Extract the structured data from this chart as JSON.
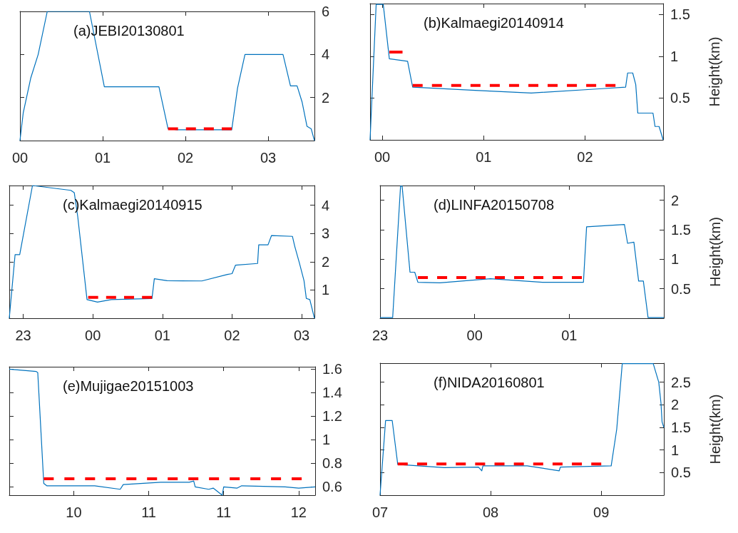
{
  "chart_data": [
    {
      "type": "line",
      "title": "(a)JEBI20130801",
      "xlim": [
        0,
        3.56
      ],
      "xticks": [
        {
          "value": 0,
          "label": "00"
        },
        {
          "value": 1,
          "label": "01"
        },
        {
          "value": 2,
          "label": "02"
        },
        {
          "value": 3,
          "label": "03"
        }
      ],
      "ylim": [
        0,
        6
      ],
      "yticks": [
        2,
        4,
        6
      ],
      "marker": "none",
      "series": [
        {
          "color": "#0072bd",
          "line_style": "solid",
          "x": [
            0,
            0.04,
            0.13,
            0.22,
            0.33,
            0.84,
            1.02,
            1.68,
            1.79,
            1.9,
            2.56,
            2.63,
            2.72,
            3.18,
            3.27,
            3.35,
            3.41,
            3.47,
            3.52,
            3.56
          ],
          "values": [
            0,
            1.3,
            2.9,
            4.0,
            6,
            6,
            2.5,
            2.5,
            0.55,
            0.5,
            0.5,
            2.43,
            4.0,
            4.0,
            2.54,
            2.54,
            1.8,
            0.66,
            0.55,
            0
          ]
        },
        {
          "color": "#ff0000",
          "line_style": "dashed",
          "x": [
            1.79,
            2.56
          ],
          "values": [
            0.55,
            0.55
          ]
        }
      ]
    },
    {
      "type": "line",
      "title": "(b)Kalmaegi20140914",
      "ylabel": "Height(km)",
      "xlim": [
        -0.12,
        2.77
      ],
      "xticks": [
        {
          "value": 0,
          "label": "00"
        },
        {
          "value": 1,
          "label": "01"
        },
        {
          "value": 2,
          "label": "02"
        }
      ],
      "ylim": [
        0,
        1.63
      ],
      "yticks": [
        0.5,
        1,
        1.5
      ],
      "marker": "none",
      "series": [
        {
          "color": "#0072bd",
          "line_style": "solid",
          "x": [
            -0.12,
            -0.06,
            0.01,
            0.07,
            0.25,
            0.3,
            0.95,
            1.47,
            2.14,
            2.4,
            2.42,
            2.47,
            2.5,
            2.52,
            2.67,
            2.69,
            2.73,
            2.77
          ],
          "values": [
            0,
            1.62,
            1.62,
            0.97,
            0.94,
            0.63,
            0.59,
            0.56,
            0.61,
            0.63,
            0.8,
            0.8,
            0.66,
            0.32,
            0.32,
            0.16,
            0.16,
            0
          ]
        },
        {
          "color": "#ff0000",
          "line_style": "solid",
          "x": [
            0.07,
            0.2
          ],
          "values": [
            1.05,
            1.05
          ]
        },
        {
          "color": "#ff0000",
          "line_style": "dashed",
          "x": [
            0.3,
            2.3
          ],
          "values": [
            0.65,
            0.65
          ]
        }
      ]
    },
    {
      "type": "line",
      "title": "(c)Kalmaegi20140915",
      "xlim": [
        "2014-09-14T22:48",
        "2014-09-15T03:11"
      ],
      "xticks": [
        {
          "value": "2014-09-14T23:00",
          "label": "23"
        },
        {
          "value": "2014-09-15T00:00",
          "label": "00"
        },
        {
          "value": "2014-09-15T01:00",
          "label": "01"
        },
        {
          "value": "2014-09-15T02:00",
          "label": "02"
        },
        {
          "value": "2014-09-15T03:00",
          "label": "03"
        }
      ],
      "ylim": [
        0,
        4.7
      ],
      "yticks": [
        1,
        2,
        3,
        4
      ],
      "marker": "none",
      "series": [
        {
          "color": "#0072bd",
          "line_style": "solid",
          "x": [
            "2014-09-14T22:48",
            "2014-09-14T22:53",
            "2014-09-14T22:57",
            "2014-09-14T23:08",
            "2014-09-14T23:41",
            "2014-09-14T23:44",
            "2014-09-14T23:47",
            "2014-09-14T23:55",
            "2014-09-15T00:04",
            "2014-09-15T00:16",
            "2014-09-15T00:51",
            "2014-09-15T00:53",
            "2014-09-15T01:04",
            "2014-09-15T01:34",
            "2014-09-15T01:56",
            "2014-09-15T02:00",
            "2014-09-15T02:03",
            "2014-09-15T02:22",
            "2014-09-15T02:23",
            "2014-09-15T02:31",
            "2014-09-15T02:34",
            "2014-09-15T02:52",
            "2014-09-15T02:54",
            "2014-09-15T02:58",
            "2014-09-15T03:02",
            "2014-09-15T03:04",
            "2014-09-15T03:07",
            "2014-09-15T03:11"
          ],
          "values": [
            0,
            2.25,
            2.25,
            4.7,
            4.53,
            4.45,
            3.6,
            0.66,
            0.57,
            0.66,
            0.7,
            1.4,
            1.33,
            1.32,
            1.55,
            1.58,
            1.88,
            1.94,
            2.6,
            2.6,
            2.93,
            2.9,
            2.55,
            1.96,
            1.33,
            0.7,
            0.66,
            0
          ]
        },
        {
          "color": "#ff0000",
          "line_style": "dashed",
          "x": [
            "2014-09-14T23:56",
            "2014-09-15T00:51"
          ],
          "values": [
            0.74,
            0.74
          ]
        }
      ]
    },
    {
      "type": "line",
      "title": "(d)LINFA20150708",
      "ylabel": "Height(km)",
      "xlim": [
        "2015-07-07T23:00",
        "2015-07-08T02:00"
      ],
      "xticks": [
        {
          "value": "2015-07-07T23:00",
          "label": "23"
        },
        {
          "value": "2015-07-08T00:00",
          "label": "00"
        },
        {
          "value": "2015-07-08T01:00",
          "label": "01"
        }
      ],
      "ylim": [
        0,
        2.25
      ],
      "yticks": [
        0.5,
        1,
        1.5,
        2
      ],
      "marker": "none",
      "series": [
        {
          "color": "#0072bd",
          "line_style": "solid",
          "x": [
            "2015-07-07T23:00",
            "2015-07-07T23:08",
            "2015-07-07T23:13",
            "2015-07-07T23:14",
            "2015-07-07T23:19",
            "2015-07-07T23:22",
            "2015-07-07T23:24",
            "2015-07-07T23:38",
            "2015-07-08T00:10",
            "2015-07-08T00:43",
            "2015-07-08T01:09",
            "2015-07-08T01:11",
            "2015-07-08T01:35",
            "2015-07-08T01:37",
            "2015-07-08T01:41",
            "2015-07-08T01:44",
            "2015-07-08T01:47",
            "2015-07-08T01:50",
            "2015-07-08T02:00"
          ],
          "values": [
            0.01,
            0.01,
            2.24,
            2.24,
            0.78,
            0.78,
            0.61,
            0.6,
            0.67,
            0.61,
            0.61,
            1.55,
            1.59,
            1.27,
            1.29,
            0.63,
            0.63,
            0.01,
            0.01
          ]
        },
        {
          "color": "#ff0000",
          "line_style": "dashed",
          "x": [
            "2015-07-07T23:24",
            "2015-07-08T01:08"
          ],
          "values": [
            0.69,
            0.69
          ]
        }
      ]
    },
    {
      "type": "line",
      "title": "(e)Mujigae20151003",
      "xlim": [
        9.57,
        11.61
      ],
      "xticks": [
        {
          "value": 10,
          "label": "10"
        },
        {
          "value": 10.5,
          "label": "11"
        },
        {
          "value": 11,
          "label": "11"
        },
        {
          "value": 11.5,
          "label": "12"
        }
      ],
      "ylim": [
        0.53,
        1.62
      ],
      "yticks": [
        0.6,
        0.8,
        1,
        1.2,
        1.4,
        1.6
      ],
      "marker": "none",
      "series": [
        {
          "color": "#0072bd",
          "line_style": "solid",
          "x": [
            9.57,
            9.75,
            9.76,
            9.78,
            9.8,
            9.82,
            10.14,
            10.31,
            10.33,
            10.58,
            10.77,
            10.8,
            10.81,
            10.9,
            10.93,
            10.99,
            11.0,
            11.09,
            11.12,
            11.41,
            11.5,
            11.61
          ],
          "values": [
            1.6,
            1.58,
            1.57,
            1.1,
            0.63,
            0.61,
            0.61,
            0.58,
            0.62,
            0.64,
            0.64,
            0.65,
            0.6,
            0.58,
            0.59,
            0.53,
            0.6,
            0.59,
            0.61,
            0.6,
            0.59,
            0.6
          ]
        },
        {
          "color": "#ff0000",
          "line_style": "dashed",
          "x": [
            9.8,
            11.52
          ],
          "values": [
            0.67,
            0.67
          ]
        }
      ]
    },
    {
      "type": "line",
      "title": "(f)NIDA20160801",
      "ylabel": "Height(km)",
      "xlim": [
        7,
        9.566
      ],
      "xticks": [
        {
          "value": 7,
          "label": "07"
        },
        {
          "value": 8,
          "label": "08"
        },
        {
          "value": 9,
          "label": "09"
        }
      ],
      "ylim": [
        0,
        2.92
      ],
      "yticks": [
        0.5,
        1,
        1.5,
        2,
        2.5
      ],
      "marker": "none",
      "series": [
        {
          "color": "#0072bd",
          "line_style": "solid",
          "x": [
            7,
            7.05,
            7.11,
            7.16,
            7.58,
            7.89,
            7.92,
            7.93,
            8.33,
            8.62,
            8.63,
            9.09,
            9.14,
            9.19,
            9.47,
            9.52,
            9.54,
            9.55,
            9.566
          ],
          "values": [
            0,
            1.65,
            1.65,
            0.68,
            0.61,
            0.62,
            0.54,
            0.65,
            0.65,
            0.54,
            0.62,
            0.65,
            1.46,
            2.91,
            2.91,
            2.5,
            2.04,
            1.62,
            1.5
          ]
        },
        {
          "color": "#ff0000",
          "line_style": "dashed",
          "x": [
            7.16,
            9.0
          ],
          "values": [
            0.69,
            0.69
          ]
        }
      ]
    }
  ]
}
